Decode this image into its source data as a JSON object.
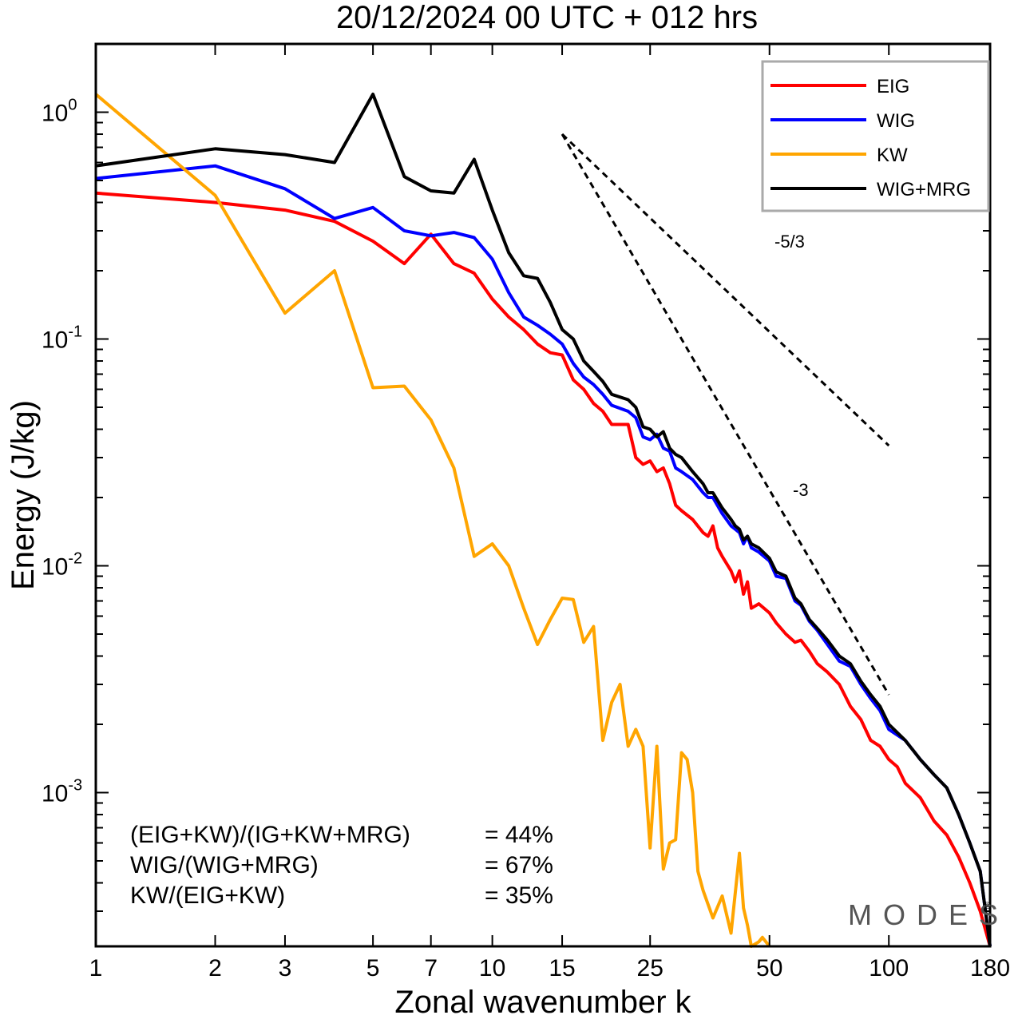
{
  "chart_data": {
    "type": "line",
    "title": "20/12/2024  00 UTC  + 012 hrs",
    "xlabel": "Zonal wavenumber k",
    "ylabel": "Energy (J/kg)",
    "xscale": "log",
    "yscale": "log",
    "xlim": [
      1,
      180
    ],
    "ylim": [
      0.00021,
      2.0
    ],
    "x_ticks": [
      1,
      2,
      3,
      5,
      7,
      10,
      15,
      25,
      50,
      100,
      180
    ],
    "y_ticks": [
      {
        "value": 1,
        "base": "10",
        "exp": "0"
      },
      {
        "value": 0.1,
        "base": "10",
        "exp": "-1"
      },
      {
        "value": 0.01,
        "base": "10",
        "exp": "-2"
      },
      {
        "value": 0.001,
        "base": "10",
        "exp": "-3"
      }
    ],
    "legend_position": "top-right",
    "grid": false,
    "series": [
      {
        "name": "EIG",
        "color": "#ff0000",
        "points": [
          [
            1,
            0.44
          ],
          [
            2,
            0.4
          ],
          [
            3,
            0.37
          ],
          [
            4,
            0.33
          ],
          [
            5,
            0.27
          ],
          [
            6,
            0.215
          ],
          [
            7,
            0.29
          ],
          [
            8,
            0.215
          ],
          [
            9,
            0.195
          ],
          [
            10,
            0.15
          ],
          [
            11,
            0.125
          ],
          [
            12,
            0.11
          ],
          [
            13,
            0.095
          ],
          [
            14,
            0.087
          ],
          [
            15,
            0.085
          ],
          [
            16,
            0.066
          ],
          [
            17,
            0.06
          ],
          [
            18,
            0.052
          ],
          [
            19,
            0.048
          ],
          [
            20,
            0.042
          ],
          [
            22,
            0.042
          ],
          [
            23,
            0.03
          ],
          [
            24,
            0.028
          ],
          [
            25,
            0.029
          ],
          [
            26,
            0.026
          ],
          [
            27,
            0.027
          ],
          [
            28,
            0.023
          ],
          [
            29,
            0.0185
          ],
          [
            30,
            0.0175
          ],
          [
            32,
            0.016
          ],
          [
            34,
            0.014
          ],
          [
            35,
            0.0135
          ],
          [
            36,
            0.015
          ],
          [
            37,
            0.012
          ],
          [
            38,
            0.011
          ],
          [
            40,
            0.0095
          ],
          [
            41,
            0.0085
          ],
          [
            42,
            0.0095
          ],
          [
            43,
            0.0075
          ],
          [
            44,
            0.0085
          ],
          [
            45,
            0.0065
          ],
          [
            47,
            0.0068
          ],
          [
            50,
            0.0062
          ],
          [
            52,
            0.0056
          ],
          [
            55,
            0.005
          ],
          [
            58,
            0.0046
          ],
          [
            60,
            0.0047
          ],
          [
            63,
            0.0042
          ],
          [
            66,
            0.0037
          ],
          [
            70,
            0.0034
          ],
          [
            75,
            0.003
          ],
          [
            80,
            0.0024
          ],
          [
            85,
            0.0021
          ],
          [
            90,
            0.0017
          ],
          [
            95,
            0.0016
          ],
          [
            100,
            0.0014
          ],
          [
            105,
            0.0013
          ],
          [
            110,
            0.0011
          ],
          [
            120,
            0.00095
          ],
          [
            130,
            0.00075
          ],
          [
            140,
            0.00065
          ],
          [
            150,
            0.00052
          ],
          [
            160,
            0.0004
          ],
          [
            170,
            0.0003
          ],
          [
            180,
            0.00021
          ]
        ]
      },
      {
        "name": "WIG",
        "color": "#0000ff",
        "points": [
          [
            1,
            0.51
          ],
          [
            2,
            0.58
          ],
          [
            3,
            0.46
          ],
          [
            4,
            0.34
          ],
          [
            5,
            0.38
          ],
          [
            6,
            0.3
          ],
          [
            7,
            0.285
          ],
          [
            8,
            0.295
          ],
          [
            9,
            0.28
          ],
          [
            10,
            0.225
          ],
          [
            11,
            0.16
          ],
          [
            12,
            0.125
          ],
          [
            13,
            0.115
          ],
          [
            14,
            0.105
          ],
          [
            15,
            0.095
          ],
          [
            16,
            0.078
          ],
          [
            17,
            0.068
          ],
          [
            18,
            0.063
          ],
          [
            19,
            0.057
          ],
          [
            20,
            0.051
          ],
          [
            22,
            0.048
          ],
          [
            23,
            0.045
          ],
          [
            24,
            0.037
          ],
          [
            25,
            0.036
          ],
          [
            26,
            0.038
          ],
          [
            27,
            0.033
          ],
          [
            28,
            0.032
          ],
          [
            29,
            0.027
          ],
          [
            30,
            0.026
          ],
          [
            32,
            0.024
          ],
          [
            34,
            0.021
          ],
          [
            35,
            0.02
          ],
          [
            36,
            0.02
          ],
          [
            38,
            0.017
          ],
          [
            40,
            0.015
          ],
          [
            41,
            0.0145
          ],
          [
            42,
            0.014
          ],
          [
            43,
            0.0125
          ],
          [
            44,
            0.0135
          ],
          [
            45,
            0.012
          ],
          [
            47,
            0.0115
          ],
          [
            50,
            0.0105
          ],
          [
            52,
            0.009
          ],
          [
            55,
            0.0088
          ],
          [
            58,
            0.007
          ],
          [
            60,
            0.0067
          ],
          [
            63,
            0.0057
          ],
          [
            66,
            0.0052
          ],
          [
            70,
            0.0045
          ],
          [
            75,
            0.0038
          ],
          [
            80,
            0.0036
          ],
          [
            85,
            0.003
          ],
          [
            90,
            0.0026
          ],
          [
            95,
            0.0023
          ],
          [
            100,
            0.0019
          ],
          [
            110,
            0.0017
          ],
          [
            120,
            0.0014
          ],
          [
            130,
            0.0012
          ],
          [
            140,
            0.00105
          ],
          [
            150,
            0.0008
          ],
          [
            160,
            0.0006
          ],
          [
            170,
            0.00045
          ],
          [
            180,
            0.00021
          ]
        ]
      },
      {
        "name": "KW",
        "color": "#ffa500",
        "points": [
          [
            1,
            1.2
          ],
          [
            2,
            0.43
          ],
          [
            3,
            0.13
          ],
          [
            4,
            0.2
          ],
          [
            5,
            0.061
          ],
          [
            6,
            0.062
          ],
          [
            7,
            0.044
          ],
          [
            8,
            0.027
          ],
          [
            9,
            0.011
          ],
          [
            10,
            0.0125
          ],
          [
            11,
            0.01
          ],
          [
            12,
            0.0065
          ],
          [
            13,
            0.0045
          ],
          [
            14,
            0.0058
          ],
          [
            15,
            0.0072
          ],
          [
            16,
            0.0071
          ],
          [
            17,
            0.0046
          ],
          [
            18,
            0.0054
          ],
          [
            19,
            0.0017
          ],
          [
            20,
            0.0025
          ],
          [
            21,
            0.003
          ],
          [
            22,
            0.0016
          ],
          [
            23,
            0.0019
          ],
          [
            24,
            0.0016
          ],
          [
            25,
            0.00057
          ],
          [
            26,
            0.0016
          ],
          [
            27,
            0.00046
          ],
          [
            28,
            0.0006
          ],
          [
            29,
            0.00062
          ],
          [
            30,
            0.0015
          ],
          [
            31,
            0.0014
          ],
          [
            32,
            0.001
          ],
          [
            33,
            0.00045
          ],
          [
            34,
            0.00037
          ],
          [
            36,
            0.00028
          ],
          [
            38,
            0.00035
          ],
          [
            40,
            0.00024
          ],
          [
            42,
            0.00054
          ],
          [
            43,
            0.00031
          ],
          [
            44,
            0.00026
          ],
          [
            45,
            0.00021
          ],
          [
            47,
            0.00022
          ],
          [
            48,
            0.00023
          ],
          [
            50,
            0.00021
          ]
        ]
      },
      {
        "name": "WIG+MRG",
        "color": "#000000",
        "points": [
          [
            1,
            0.58
          ],
          [
            2,
            0.69
          ],
          [
            3,
            0.65
          ],
          [
            4,
            0.6
          ],
          [
            5,
            1.2
          ],
          [
            6,
            0.52
          ],
          [
            7,
            0.45
          ],
          [
            8,
            0.44
          ],
          [
            9,
            0.62
          ],
          [
            10,
            0.37
          ],
          [
            11,
            0.24
          ],
          [
            12,
            0.19
          ],
          [
            13,
            0.185
          ],
          [
            14,
            0.145
          ],
          [
            15,
            0.11
          ],
          [
            16,
            0.1
          ],
          [
            17,
            0.08
          ],
          [
            18,
            0.072
          ],
          [
            19,
            0.065
          ],
          [
            20,
            0.057
          ],
          [
            22,
            0.054
          ],
          [
            23,
            0.05
          ],
          [
            24,
            0.041
          ],
          [
            25,
            0.04
          ],
          [
            26,
            0.037
          ],
          [
            27,
            0.039
          ],
          [
            28,
            0.033
          ],
          [
            29,
            0.031
          ],
          [
            30,
            0.03
          ],
          [
            32,
            0.026
          ],
          [
            34,
            0.023
          ],
          [
            35,
            0.021
          ],
          [
            36,
            0.021
          ],
          [
            38,
            0.018
          ],
          [
            40,
            0.016
          ],
          [
            41,
            0.015
          ],
          [
            42,
            0.0145
          ],
          [
            43,
            0.013
          ],
          [
            44,
            0.0135
          ],
          [
            45,
            0.0125
          ],
          [
            47,
            0.012
          ],
          [
            50,
            0.0108
          ],
          [
            52,
            0.0094
          ],
          [
            55,
            0.009
          ],
          [
            58,
            0.0072
          ],
          [
            60,
            0.0068
          ],
          [
            63,
            0.0058
          ],
          [
            66,
            0.0053
          ],
          [
            70,
            0.0047
          ],
          [
            75,
            0.004
          ],
          [
            80,
            0.0037
          ],
          [
            85,
            0.0031
          ],
          [
            90,
            0.0027
          ],
          [
            95,
            0.0024
          ],
          [
            100,
            0.002
          ],
          [
            110,
            0.0017
          ],
          [
            120,
            0.0014
          ],
          [
            130,
            0.0012
          ],
          [
            140,
            0.00105
          ],
          [
            150,
            0.0008
          ],
          [
            160,
            0.0006
          ],
          [
            170,
            0.00045
          ],
          [
            180,
            0.00021
          ]
        ]
      }
    ],
    "reference_lines": [
      {
        "label": "-5/3",
        "slope": -1.6667,
        "k_start": 15,
        "k_end": 100,
        "e_start": 0.8
      },
      {
        "label": "-3",
        "slope": -3,
        "k_start": 15,
        "k_end": 100,
        "e_start": 0.8
      }
    ],
    "annotations": [
      {
        "label": "(EIG+KW)/(IG+KW+MRG)",
        "value": "= 44%"
      },
      {
        "label": "WIG/(WIG+MRG)",
        "value": "= 67%"
      },
      {
        "label": "KW/(EIG+KW)",
        "value": "= 35%"
      }
    ],
    "logo": "MODES",
    "logo_mark": "©"
  }
}
